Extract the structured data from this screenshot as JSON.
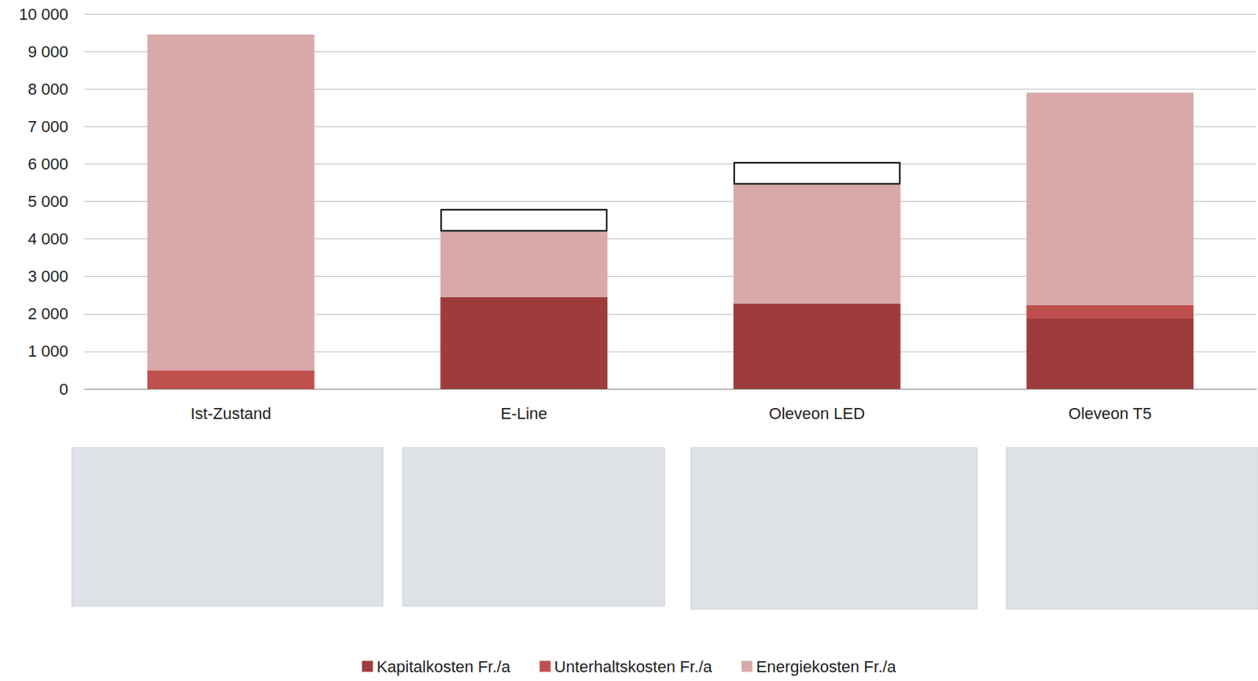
{
  "chart_data": {
    "type": "bar",
    "stacked": true,
    "grid": true,
    "legend": "bottom",
    "categories": [
      "Ist-Zustand",
      "E-Line",
      "Oleveon LED",
      "Oleveon T5"
    ],
    "series": [
      {
        "name": "Kapitalkosten Fr./a",
        "color": "#9e3c3c",
        "values": [
          0,
          2450,
          2280,
          1880
        ]
      },
      {
        "name": "Unterhaltskosten Fr./a",
        "color": "#c0504d",
        "values": [
          500,
          0,
          0,
          350
        ]
      },
      {
        "name": "Energiekosten Fr./a",
        "color": "#d9a8a8",
        "values": [
          8950,
          1750,
          3170,
          5670
        ]
      },
      {
        "name": null,
        "color": "#ffffff",
        "marker": "outline",
        "values": [
          null,
          600,
          600,
          null
        ]
      }
    ],
    "ylim": [
      0,
      10000
    ],
    "yticks": [
      0,
      {
        "value": 1000,
        "label": "1 000"
      },
      {
        "value": 2000,
        "label": "2 000"
      },
      {
        "value": 3000,
        "label": "3 000"
      },
      {
        "value": 4000,
        "label": "4 000"
      },
      {
        "value": 5000,
        "label": "5 000"
      },
      {
        "value": 6000,
        "label": "6 000"
      },
      {
        "value": 7000,
        "label": "7 000"
      },
      {
        "value": 8000,
        "label": "8 000"
      },
      {
        "value": 9000,
        "label": "9 000"
      },
      {
        "value": 10000,
        "label": "10 000"
      }
    ]
  }
}
